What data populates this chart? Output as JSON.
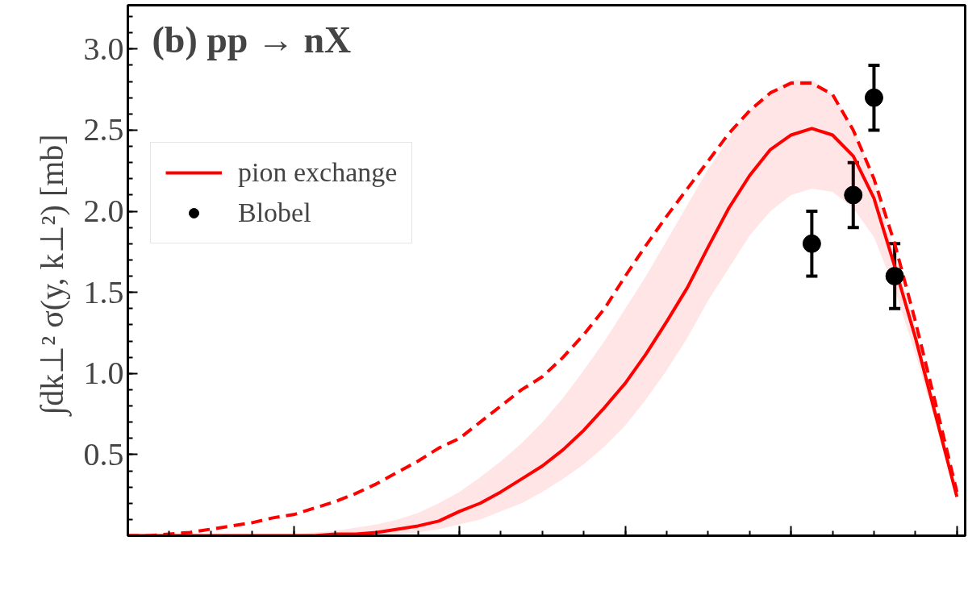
{
  "chart_data": {
    "type": "line",
    "title": "(b)  pp → nX",
    "ylabel": "∫dk⊥² σ(y, k⊥²)  [mb]",
    "categories": [
      null,
      null,
      null,
      null,
      null,
      null,
      null,
      null,
      null,
      null,
      null,
      null,
      null,
      null,
      null,
      null,
      null,
      null,
      null,
      null,
      null,
      null,
      null,
      null,
      null,
      null,
      null,
      null,
      null,
      null,
      null,
      null,
      null,
      null,
      null,
      null,
      null,
      null,
      null,
      null,
      null
    ],
    "series": [
      {
        "name": "pion exchange",
        "color": "#ff0000",
        "line_style": "solid",
        "values": [
          0,
          0,
          0,
          0,
          0,
          0,
          0,
          0,
          0,
          0,
          0.01,
          0.01,
          0.02,
          0.04,
          0.06,
          0.09,
          0.15,
          0.2,
          0.27,
          0.35,
          0.43,
          0.53,
          0.65,
          0.79,
          0.94,
          1.12,
          1.32,
          1.53,
          1.78,
          2.02,
          2.22,
          2.38,
          2.47,
          2.51,
          2.47,
          2.34,
          2.08,
          1.66,
          1.22,
          0.73,
          0.24
        ],
        "lower": [
          0,
          0,
          0,
          0,
          0,
          0,
          0,
          0,
          0,
          0,
          0,
          0,
          0,
          0.01,
          0.02,
          0.04,
          0.07,
          0.1,
          0.15,
          0.2,
          0.27,
          0.35,
          0.44,
          0.55,
          0.68,
          0.84,
          1.02,
          1.22,
          1.45,
          1.65,
          1.85,
          2.0,
          2.1,
          2.14,
          2.12,
          2.02,
          1.84,
          1.52,
          1.12,
          0.68,
          0.22
        ],
        "upper": [
          0,
          0,
          0,
          0,
          0,
          0,
          0,
          0.01,
          0.01,
          0.02,
          0.03,
          0.05,
          0.07,
          0.1,
          0.14,
          0.2,
          0.27,
          0.36,
          0.46,
          0.57,
          0.7,
          0.85,
          1.02,
          1.2,
          1.4,
          1.6,
          1.82,
          2.04,
          2.26,
          2.45,
          2.62,
          2.74,
          2.81,
          2.81,
          2.72,
          2.52,
          2.2,
          1.74,
          1.28,
          0.78,
          0.26
        ]
      },
      {
        "color": "#ff0000",
        "line_style": "dashed",
        "values": [
          0,
          0,
          0.01,
          0.02,
          0.04,
          0.06,
          0.08,
          0.11,
          0.13,
          0.17,
          0.21,
          0.26,
          0.32,
          0.39,
          0.46,
          0.54,
          0.6,
          0.7,
          0.8,
          0.9,
          0.98,
          1.1,
          1.24,
          1.4,
          1.6,
          1.79,
          1.97,
          2.14,
          2.31,
          2.48,
          2.62,
          2.73,
          2.79,
          2.79,
          2.72,
          2.5,
          2.2,
          1.8,
          1.32,
          0.8,
          0.27
        ]
      },
      {
        "name": "Blobel",
        "type": "scatter",
        "color": "#000000",
        "marker": "circle",
        "values": [
          null,
          null,
          null,
          null,
          null,
          null,
          null,
          null,
          null,
          null,
          null,
          null,
          null,
          null,
          null,
          null,
          null,
          null,
          null,
          null,
          null,
          null,
          null,
          null,
          null,
          null,
          null,
          null,
          null,
          null,
          null,
          null,
          null,
          1.8,
          null,
          2.1,
          2.7,
          1.6,
          null,
          null,
          null
        ],
        "errors": [
          null,
          null,
          null,
          null,
          null,
          null,
          null,
          null,
          null,
          null,
          null,
          null,
          null,
          null,
          null,
          null,
          null,
          null,
          null,
          null,
          null,
          null,
          null,
          null,
          null,
          null,
          null,
          null,
          null,
          null,
          null,
          null,
          null,
          0.2,
          null,
          0.2,
          0.2,
          0.2,
          null,
          null,
          null
        ]
      }
    ],
    "ylim": [
      0,
      3.27
    ],
    "yticks": [
      0.5,
      {
        "value": 1,
        "label": "1.0"
      },
      1.5,
      {
        "value": 2,
        "label": "2.0"
      },
      2.5,
      {
        "value": 3,
        "label": "3.0"
      }
    ],
    "legend": "top left",
    "grid": false
  }
}
